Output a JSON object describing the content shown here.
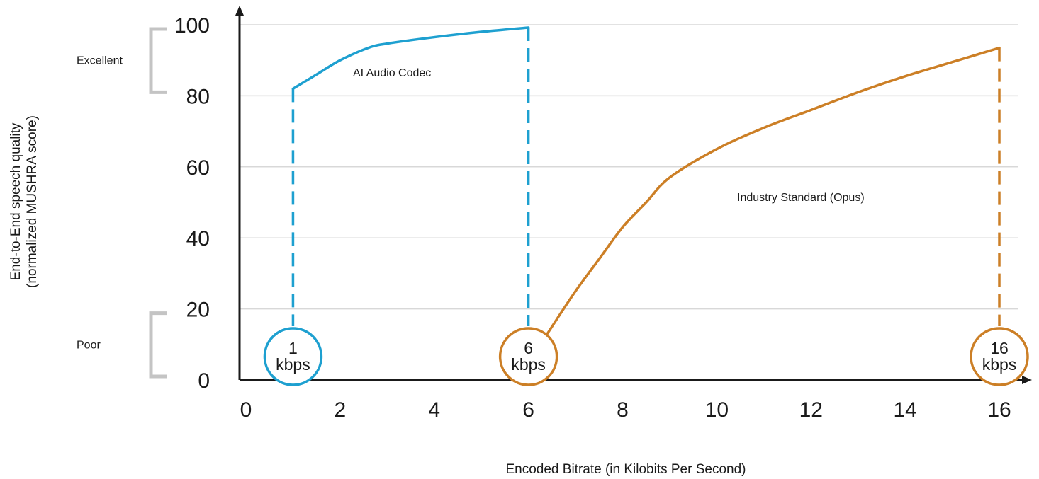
{
  "chart_data": {
    "type": "line",
    "ylabel": "End-to-End speech quality\n(normalized MUSHRA score)",
    "xlabel": "Encoded Bitrate (in Kilobits Per Second)",
    "xlim": [
      0,
      16
    ],
    "ylim": [
      0,
      100
    ],
    "x_ticks": [
      0,
      2,
      4,
      6,
      8,
      10,
      12,
      14,
      16
    ],
    "y_ticks": [
      0,
      20,
      40,
      60,
      80,
      100
    ],
    "grid": "horizontal",
    "quality_bands": [
      {
        "label": "Excellent",
        "from": 80,
        "to": 100
      },
      {
        "label": "Poor",
        "from": 0,
        "to": 20
      }
    ],
    "series": [
      {
        "name": "AI Audio Codec",
        "color": "#1ea0d0",
        "x": [
          1,
          1.5,
          2,
          2.6,
          3,
          4,
          5,
          6
        ],
        "y": [
          82,
          86,
          90,
          93.5,
          94.7,
          96.5,
          98,
          99.2
        ]
      },
      {
        "name": "Industry Standard (Opus)",
        "color": "#cc7f26",
        "x": [
          6.4,
          7,
          7.5,
          8,
          8.5,
          9,
          10,
          11,
          12,
          13,
          14,
          15,
          16
        ],
        "y": [
          13,
          25,
          34,
          43,
          50,
          57,
          65,
          71,
          76,
          81,
          85.5,
          89.5,
          93.5
        ]
      }
    ],
    "markers": [
      {
        "x": 1,
        "line1": "1",
        "line2": "kbps",
        "color": "#1ea0d0",
        "dash_to": 82
      },
      {
        "x": 6,
        "line1": "6",
        "line2": "kbps",
        "color": "#cc7f26",
        "dash_to": 99.2,
        "dash_color": "#1ea0d0"
      },
      {
        "x": 16,
        "line1": "16",
        "line2": "kbps",
        "color": "#cc7f26",
        "dash_to": 93.5
      }
    ]
  }
}
